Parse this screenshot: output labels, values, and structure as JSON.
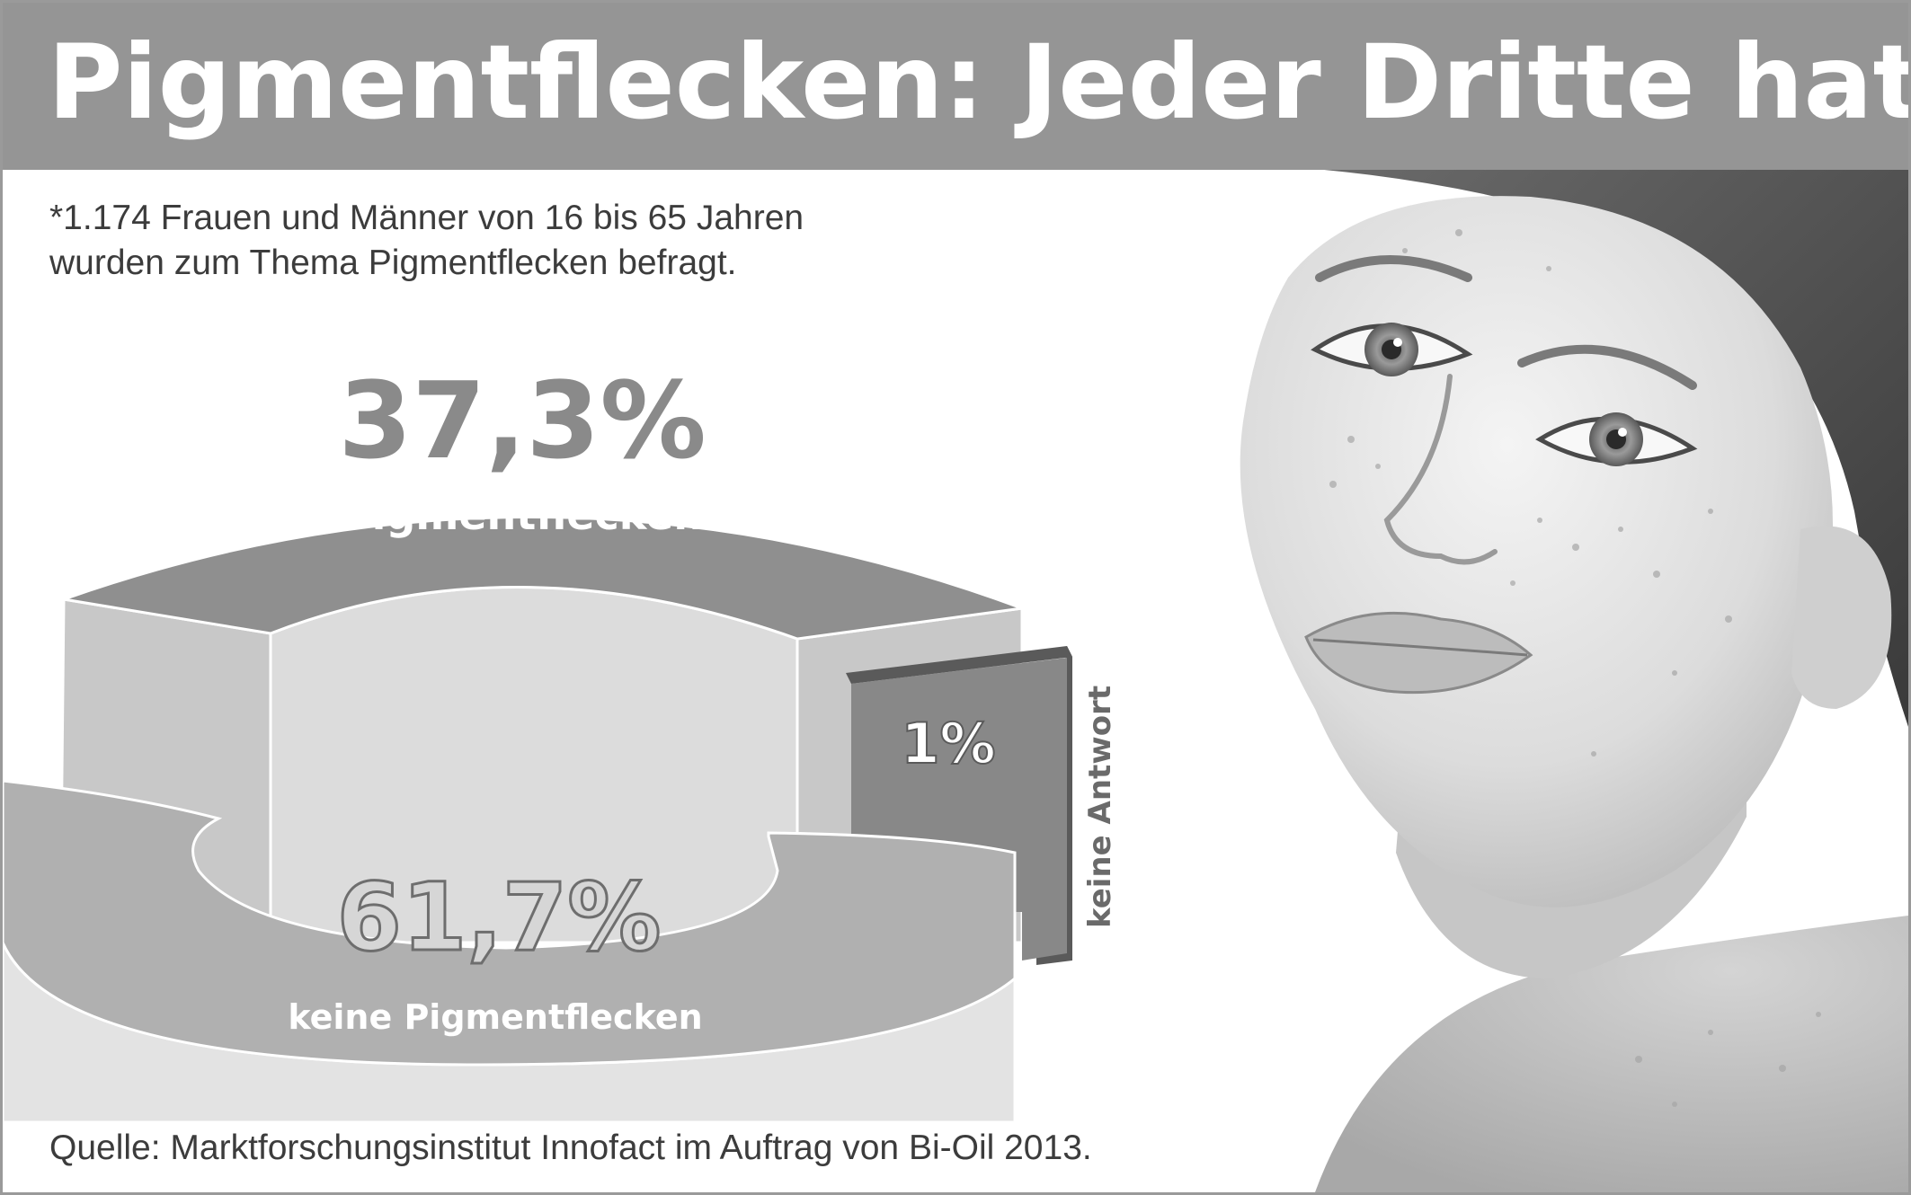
{
  "header": {
    "title": "Pigmentflecken: Jeder Dritte hat sie!"
  },
  "note": {
    "line1": "*1.174 Frauen und Männer von 16 bis 65 Jahren",
    "line2": "wurden zum Thema Pigmentflecken befragt."
  },
  "source": "Quelle: Marktforschungsinstitut Innofact im Auftrag von Bi-Oil 2013.",
  "colors": {
    "title_bar": "#959595",
    "ring_top": "#8f8f8f",
    "ring_side": "#c8c8c8",
    "inner_wall": "#dcdcdc",
    "front_top": "#b0b0b0",
    "front_side": "#e4e4e4",
    "tab_face": "#888888",
    "tab_edge": "#5a5a5a",
    "big_number_gray": "#8a8a8a"
  },
  "chart_data": {
    "type": "pie",
    "categories": [
      "Pigmentflecken",
      "keine Pigmentflecken",
      "keine Antwort"
    ],
    "values": [
      37.3,
      61.7,
      1
    ],
    "value_labels": [
      "37,3%",
      "61,7%",
      "1%"
    ],
    "unit": "%"
  }
}
